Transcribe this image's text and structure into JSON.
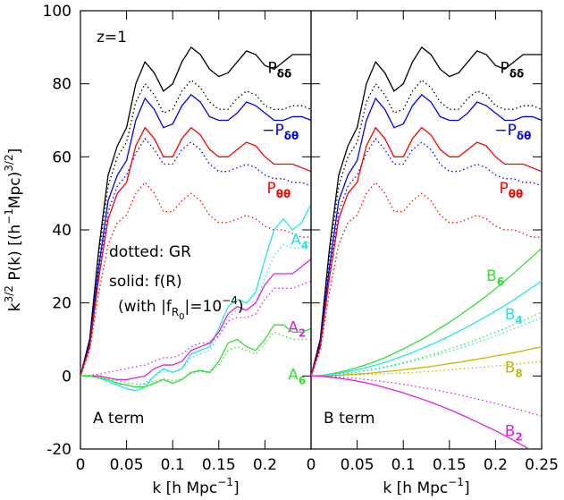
{
  "chart_data": [
    {
      "type": "line",
      "panel_label": "A term",
      "ylabel": [
        {
          "t": "k"
        },
        {
          "t": "3/2",
          "s": "sup"
        },
        {
          "t": " P(k) [(h"
        },
        {
          "t": "−1",
          "s": "sup"
        },
        {
          "t": "Mpc)"
        },
        {
          "t": "3/2",
          "s": "sup"
        },
        {
          "t": "]"
        }
      ],
      "xlabel": [
        {
          "t": "k [h Mpc"
        },
        {
          "t": "−1",
          "s": "sup"
        },
        {
          "t": "]"
        }
      ],
      "annotations": [
        [
          {
            "t": "z=1"
          }
        ],
        [
          {
            "t": "dotted: GR"
          }
        ],
        [
          {
            "t": "solid: f(R)"
          }
        ],
        [
          {
            "t": "(with |f"
          },
          {
            "t": "R",
            "s": "sub"
          },
          {
            "t": "0",
            "s": "sub2"
          },
          {
            "t": "|=10"
          },
          {
            "t": "−4",
            "s": "sup"
          },
          {
            "t": ")"
          }
        ]
      ],
      "xlim": [
        0,
        0.25
      ],
      "ylim": [
        -20,
        100
      ],
      "xticks": [
        0,
        0.05,
        0.1,
        0.15,
        0.2
      ],
      "yticks": [
        -20,
        0,
        20,
        40,
        60,
        80,
        100
      ],
      "ytick_labels": true,
      "x": [
        0,
        0.01,
        0.02,
        0.03,
        0.04,
        0.05,
        0.06,
        0.07,
        0.08,
        0.09,
        0.1,
        0.11,
        0.12,
        0.13,
        0.14,
        0.15,
        0.16,
        0.17,
        0.18,
        0.19,
        0.2,
        0.21,
        0.22,
        0.23,
        0.24,
        0.25
      ],
      "series": [
        {
          "name": "P",
          "name_sub": "δδ",
          "color": "#000000",
          "dash": false,
          "values": [
            0,
            10,
            35,
            55,
            63,
            68,
            80,
            86,
            83,
            78,
            80,
            86,
            90,
            88,
            84,
            82,
            83,
            86,
            89,
            88,
            85,
            84,
            86,
            88,
            88,
            88
          ]
        },
        {
          "color": "#000000",
          "dash": true,
          "values": [
            0,
            10,
            33,
            52,
            60,
            64,
            75,
            80,
            77,
            72,
            73,
            78,
            81,
            79,
            75,
            73,
            73,
            76,
            78,
            77,
            74,
            73,
            73,
            74,
            74,
            73
          ]
        },
        {
          "name": "−P",
          "name_sub": "δθ",
          "color": "#0000ff",
          "dash": false,
          "values": [
            0,
            9,
            30,
            48,
            55,
            59,
            70,
            76,
            73,
            68,
            69,
            74,
            77,
            75,
            71,
            70,
            70,
            72,
            75,
            74,
            72,
            70,
            70,
            71,
            71,
            70
          ]
        },
        {
          "color": "#0000ff",
          "dash": true,
          "values": [
            0,
            8,
            28,
            45,
            52,
            55,
            61,
            65,
            62,
            58,
            58,
            62,
            64,
            62,
            58,
            56,
            56,
            57,
            58,
            57,
            55,
            54,
            54,
            53,
            53,
            52
          ]
        },
        {
          "name": "P",
          "name_sub": "θθ",
          "color": "#ff0000",
          "dash": false,
          "values": [
            0,
            8,
            27,
            43,
            50,
            53,
            63,
            68,
            65,
            60,
            60,
            65,
            68,
            66,
            62,
            60,
            60,
            62,
            64,
            63,
            60,
            58,
            58,
            58,
            57,
            56
          ]
        },
        {
          "color": "#ff0000",
          "dash": true,
          "values": [
            0,
            7,
            23,
            36,
            42,
            44,
            50,
            53,
            50,
            45,
            45,
            48,
            50,
            48,
            44,
            42,
            42,
            43,
            44,
            43,
            41,
            40,
            40,
            39,
            38,
            38
          ]
        },
        {
          "name": "A",
          "name_sub": "4",
          "color": "#22e6e6",
          "dash": false,
          "values": [
            0,
            0,
            -0.5,
            -1.5,
            -2.5,
            -3.5,
            -4,
            -3,
            0,
            2,
            1,
            2,
            6,
            7,
            8,
            13,
            19,
            21,
            20,
            23,
            32,
            40,
            43,
            40,
            42,
            47
          ]
        },
        {
          "color": "#22e6e6",
          "dash": true,
          "values": [
            0,
            0,
            -0.3,
            -1,
            -1.8,
            -2.5,
            -3,
            -2,
            0,
            1.5,
            1,
            2,
            5,
            6,
            7,
            11,
            16,
            18,
            18,
            20,
            27,
            33,
            36,
            35,
            35,
            37
          ]
        },
        {
          "name": "A",
          "name_sub": "2",
          "color": "#e020e0",
          "dash": false,
          "values": [
            0,
            0,
            0,
            -0.5,
            -1,
            -1,
            -0.5,
            0,
            2,
            3,
            3,
            4,
            7,
            8,
            9,
            12,
            17,
            19,
            18,
            20,
            25,
            28,
            28,
            28,
            30,
            32
          ]
        },
        {
          "color": "#e020e0",
          "dash": true,
          "values": [
            0,
            0.2,
            0.5,
            1,
            1.5,
            2,
            2.5,
            3,
            4,
            5,
            5,
            6,
            8,
            9,
            9,
            11,
            15,
            16,
            16,
            17,
            21,
            24,
            24,
            24,
            25,
            26
          ]
        },
        {
          "name": "A",
          "name_sub": "6",
          "color": "#33dd33",
          "dash": false,
          "values": [
            0,
            0,
            -0.5,
            -1,
            -2,
            -2.5,
            -3,
            -3,
            -2,
            -1,
            -2,
            -1,
            1,
            1.5,
            1,
            4,
            9,
            10,
            8,
            7,
            10,
            14,
            14,
            12,
            12,
            13
          ]
        },
        {
          "color": "#33dd33",
          "dash": true,
          "values": [
            0,
            0,
            -0.3,
            -0.7,
            -1.3,
            -1.8,
            -2.2,
            -2.2,
            -1.5,
            -0.8,
            -1.3,
            -0.8,
            0.7,
            1.2,
            0.8,
            3,
            7,
            8,
            7,
            6,
            9,
            12,
            11,
            10,
            10,
            10
          ]
        }
      ]
    },
    {
      "type": "line",
      "panel_label": "B term",
      "xlabel": [
        {
          "t": "k [h Mpc"
        },
        {
          "t": "−1",
          "s": "sup"
        },
        {
          "t": "]"
        }
      ],
      "xlim": [
        0,
        0.25
      ],
      "ylim": [
        -20,
        100
      ],
      "xticks": [
        0,
        0.05,
        0.1,
        0.15,
        0.2,
        0.25
      ],
      "yticks": [
        -20,
        0,
        20,
        40,
        60,
        80,
        100
      ],
      "ytick_labels": false,
      "x": [
        0,
        0.01,
        0.02,
        0.03,
        0.04,
        0.05,
        0.06,
        0.07,
        0.08,
        0.09,
        0.1,
        0.11,
        0.12,
        0.13,
        0.14,
        0.15,
        0.16,
        0.17,
        0.18,
        0.19,
        0.2,
        0.21,
        0.22,
        0.23,
        0.24,
        0.25
      ],
      "series": [
        {
          "name": "P",
          "name_sub": "δδ",
          "color": "#000000",
          "dash": false,
          "values": [
            0,
            10,
            35,
            55,
            63,
            68,
            80,
            86,
            83,
            78,
            80,
            86,
            90,
            88,
            84,
            82,
            83,
            86,
            89,
            88,
            85,
            84,
            86,
            88,
            88,
            88
          ]
        },
        {
          "color": "#000000",
          "dash": true,
          "values": [
            0,
            10,
            33,
            52,
            60,
            64,
            75,
            80,
            77,
            72,
            73,
            78,
            81,
            79,
            75,
            73,
            73,
            76,
            78,
            77,
            74,
            73,
            73,
            74,
            74,
            73
          ]
        },
        {
          "name": "−P",
          "name_sub": "δθ",
          "color": "#0000ff",
          "dash": false,
          "values": [
            0,
            9,
            30,
            48,
            55,
            59,
            70,
            76,
            73,
            68,
            69,
            74,
            77,
            75,
            71,
            70,
            70,
            72,
            75,
            74,
            72,
            70,
            70,
            71,
            71,
            70
          ]
        },
        {
          "color": "#0000ff",
          "dash": true,
          "values": [
            0,
            8,
            28,
            45,
            52,
            55,
            61,
            65,
            62,
            58,
            58,
            62,
            64,
            62,
            58,
            56,
            56,
            57,
            58,
            57,
            55,
            54,
            54,
            53,
            53,
            52
          ]
        },
        {
          "name": "P",
          "name_sub": "θθ",
          "color": "#ff0000",
          "dash": false,
          "values": [
            0,
            8,
            27,
            43,
            50,
            53,
            63,
            68,
            65,
            60,
            60,
            65,
            68,
            66,
            62,
            60,
            60,
            62,
            64,
            63,
            60,
            58,
            58,
            58,
            57,
            56
          ]
        },
        {
          "color": "#ff0000",
          "dash": true,
          "values": [
            0,
            7,
            23,
            36,
            42,
            44,
            50,
            53,
            50,
            45,
            45,
            48,
            50,
            48,
            44,
            42,
            42,
            43,
            44,
            43,
            41,
            40,
            40,
            39,
            38,
            38
          ]
        },
        {
          "name": "B",
          "name_sub": "6",
          "color": "#33dd33",
          "dash": false,
          "values": [
            0,
            0.1,
            0.5,
            1,
            1.6,
            2.3,
            3.1,
            4,
            5,
            6.2,
            7.4,
            8.7,
            10,
            11.5,
            13.1,
            14.7,
            16.4,
            18.2,
            20,
            21.9,
            23.9,
            26,
            28.2,
            30.4,
            32.7,
            35
          ]
        },
        {
          "color": "#33dd33",
          "dash": true,
          "values": [
            0,
            0.1,
            0.2,
            0.5,
            0.8,
            1.1,
            1.5,
            2,
            2.5,
            3.1,
            3.7,
            4.3,
            5,
            5.8,
            6.5,
            7.4,
            8.2,
            9.1,
            10,
            11,
            12,
            13,
            14.1,
            15.2,
            16.3,
            17.5
          ]
        },
        {
          "name": "B",
          "name_sub": "4",
          "color": "#22e6e6",
          "dash": false,
          "values": [
            0,
            0.1,
            0.4,
            0.7,
            1.2,
            1.7,
            2.3,
            3,
            3.7,
            4.6,
            5.5,
            6.4,
            7.5,
            8.6,
            9.7,
            10.9,
            12.2,
            13.5,
            14.9,
            16.3,
            17.8,
            19.3,
            20.9,
            22.6,
            24.3,
            26
          ]
        },
        {
          "color": "#22e6e6",
          "dash": true,
          "values": [
            0,
            0.1,
            0.2,
            0.4,
            0.7,
            1,
            1.4,
            1.8,
            2.3,
            2.8,
            3.4,
            4,
            4.6,
            5.3,
            6,
            6.7,
            7.5,
            8.3,
            9.2,
            10,
            10.9,
            11.9,
            12.9,
            13.9,
            14.9,
            16
          ]
        },
        {
          "name": "B",
          "name_sub": "8",
          "color": "#c8b400",
          "dash": false,
          "values": [
            0,
            0,
            0.1,
            0.2,
            0.4,
            0.5,
            0.7,
            0.9,
            1.2,
            1.4,
            1.7,
            2,
            2.3,
            2.6,
            3,
            3.4,
            3.7,
            4.2,
            4.6,
            5,
            5.5,
            5.9,
            6.4,
            6.9,
            7.5,
            8
          ]
        },
        {
          "color": "#c8b400",
          "dash": true,
          "values": [
            0,
            0,
            0.1,
            0.1,
            0.2,
            0.3,
            0.4,
            0.5,
            0.6,
            0.7,
            0.8,
            1,
            1.1,
            1.3,
            1.5,
            1.7,
            1.9,
            2.1,
            2.3,
            2.5,
            2.7,
            3,
            3.2,
            3.5,
            3.7,
            4
          ]
        },
        {
          "name": "B",
          "name_sub": "2",
          "color": "#e020e0",
          "dash": false,
          "values": [
            0,
            -0.1,
            -0.3,
            -0.6,
            -1,
            -1.4,
            -1.9,
            -2.5,
            -3.2,
            -3.9,
            -4.6,
            -5.5,
            -6.3,
            -7.2,
            -8.2,
            -9.2,
            -10.3,
            -11.4,
            -12.6,
            -13.8,
            -15,
            -16.3,
            -17.7,
            -19.1,
            -20.5,
            -22
          ]
        },
        {
          "color": "#e020e0",
          "dash": true,
          "values": [
            0,
            0,
            -0.1,
            -0.3,
            -0.5,
            -0.7,
            -1,
            -1.3,
            -1.6,
            -1.9,
            -2.3,
            -2.7,
            -3.2,
            -3.6,
            -4.1,
            -4.6,
            -5.1,
            -5.7,
            -6.3,
            -6.9,
            -7.5,
            -8.2,
            -8.9,
            -9.5,
            -10.3,
            -11
          ]
        }
      ]
    }
  ]
}
